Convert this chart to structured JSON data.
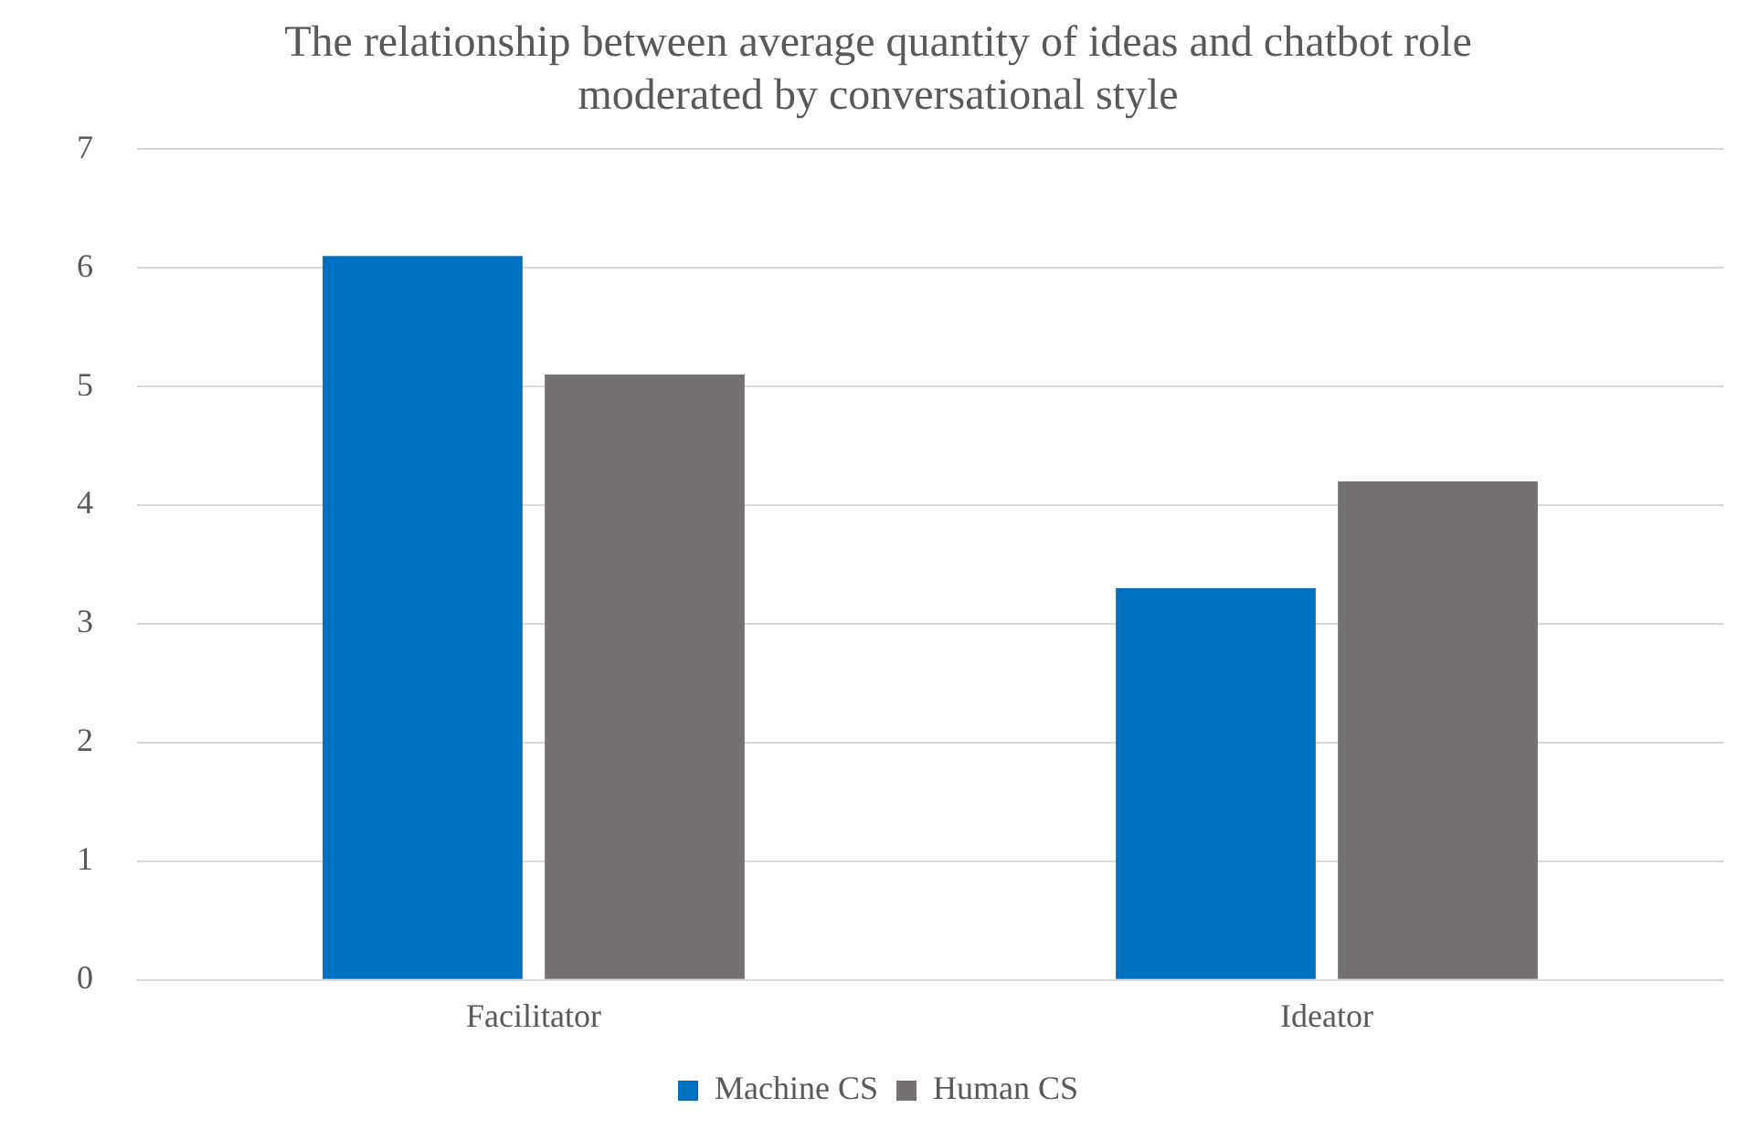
{
  "chart_data": {
    "type": "bar",
    "title": "The relationship between average quantity of ideas and chatbot role moderated by conversational style",
    "categories": [
      "Facilitator",
      "Ideator"
    ],
    "series": [
      {
        "name": "Machine CS",
        "color": "#0070c0",
        "values": [
          6.1,
          3.3
        ]
      },
      {
        "name": "Human CS",
        "color": "#767171",
        "values": [
          5.1,
          4.2
        ]
      }
    ],
    "ylim": [
      0,
      7
    ],
    "yticks": [
      0,
      1,
      2,
      3,
      4,
      5,
      6,
      7
    ],
    "grid": "y",
    "legend": "bottom"
  }
}
